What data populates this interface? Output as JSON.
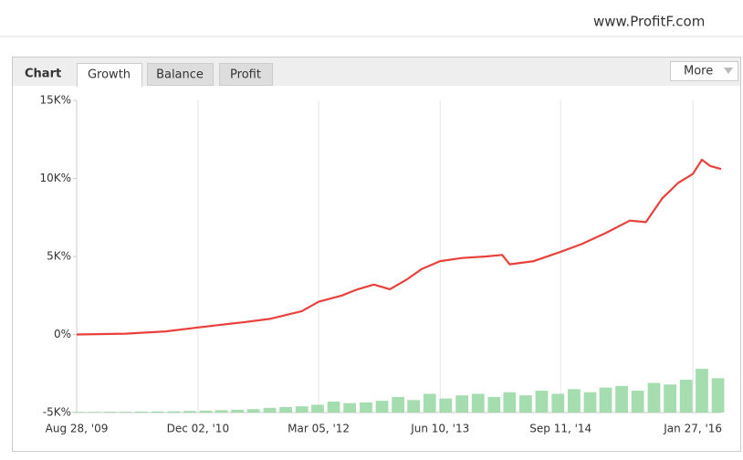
{
  "site": "www.ProfitF.com",
  "panel": {
    "title": "Chart",
    "tabs": [
      "Growth",
      "Balance",
      "Profit"
    ],
    "active_tab": 0,
    "menu": "More"
  },
  "chart_data": {
    "type": "line",
    "x": [
      "2009-08-28",
      "2010-03-01",
      "2010-08-01",
      "2010-12-02",
      "2011-06-01",
      "2011-09-01",
      "2012-01-01",
      "2012-03-05",
      "2012-06-01",
      "2012-08-01",
      "2012-10-01",
      "2012-12-01",
      "2013-02-01",
      "2013-04-01",
      "2013-06-10",
      "2013-09-01",
      "2013-12-01",
      "2014-02-01",
      "2014-03-01",
      "2014-06-01",
      "2014-09-11",
      "2014-12-01",
      "2015-03-01",
      "2015-06-01",
      "2015-08-01",
      "2015-10-01",
      "2015-12-01",
      "2016-01-27",
      "2016-03-01",
      "2016-04-01",
      "2016-05-13"
    ],
    "series": [
      {
        "color": "#e8413c",
        "values": [
          0,
          50,
          200,
          450,
          800,
          1000,
          1500,
          2100,
          2500,
          2900,
          3200,
          2900,
          3500,
          4200,
          4700,
          4900,
          5000,
          5100,
          4500,
          4700,
          5300,
          5800,
          6500,
          7300,
          7200,
          8700,
          9700,
          10300,
          11200,
          10800,
          10600
        ]
      },
      {
        "type": "bar",
        "color": "#8fd39c",
        "x": [
          "2009-09-01",
          "2009-11-01",
          "2010-01-01",
          "2010-03-01",
          "2010-05-01",
          "2010-07-01",
          "2010-09-01",
          "2010-11-01",
          "2011-01-01",
          "2011-03-01",
          "2011-05-01",
          "2011-07-01",
          "2011-09-01",
          "2011-11-01",
          "2012-01-01",
          "2012-03-01",
          "2012-05-01",
          "2012-07-01",
          "2012-09-01",
          "2012-11-01",
          "2013-01-01",
          "2013-03-01",
          "2013-05-01",
          "2013-07-01",
          "2013-09-01",
          "2013-11-01",
          "2014-01-01",
          "2014-03-01",
          "2014-05-01",
          "2014-07-01",
          "2014-09-01",
          "2014-11-01",
          "2015-01-01",
          "2015-03-01",
          "2015-05-01",
          "2015-07-01",
          "2015-09-01",
          "2015-11-01",
          "2016-01-01",
          "2016-03-01",
          "2016-05-01"
        ],
        "values": [
          -4960,
          -4960,
          -4950,
          -4950,
          -4940,
          -4930,
          -4920,
          -4900,
          -4880,
          -4850,
          -4820,
          -4780,
          -4700,
          -4650,
          -4600,
          -4500,
          -4300,
          -4400,
          -4350,
          -4250,
          -4000,
          -4200,
          -3800,
          -4100,
          -3900,
          -3800,
          -4000,
          -3700,
          -3900,
          -3600,
          -3800,
          -3500,
          -3700,
          -3400,
          -3300,
          -3600,
          -3100,
          -3200,
          -2900,
          -2200,
          -2800
        ]
      }
    ],
    "xlim": [
      "2009-08-28",
      "2016-05-13"
    ],
    "xticks": [
      {
        "value": "2009-08-28",
        "label": "Aug 28, '09"
      },
      {
        "value": "2010-12-02",
        "label": "Dec 02, '10"
      },
      {
        "value": "2012-03-05",
        "label": "Mar 05, '12"
      },
      {
        "value": "2013-06-10",
        "label": "Jun 10, '13"
      },
      {
        "value": "2014-09-11",
        "label": "Sep 11, '14"
      },
      {
        "value": "2016-01-27",
        "label": "Jan 27, '16"
      }
    ],
    "ylim": [
      -5000,
      15000
    ],
    "yticks": [
      {
        "value": -5000,
        "label": "-5K%"
      },
      {
        "value": 0,
        "label": "0%"
      },
      {
        "value": 5000,
        "label": "5K%"
      },
      {
        "value": 10000,
        "label": "10K%"
      },
      {
        "value": 15000,
        "label": "15K%"
      }
    ],
    "grid": "x"
  }
}
